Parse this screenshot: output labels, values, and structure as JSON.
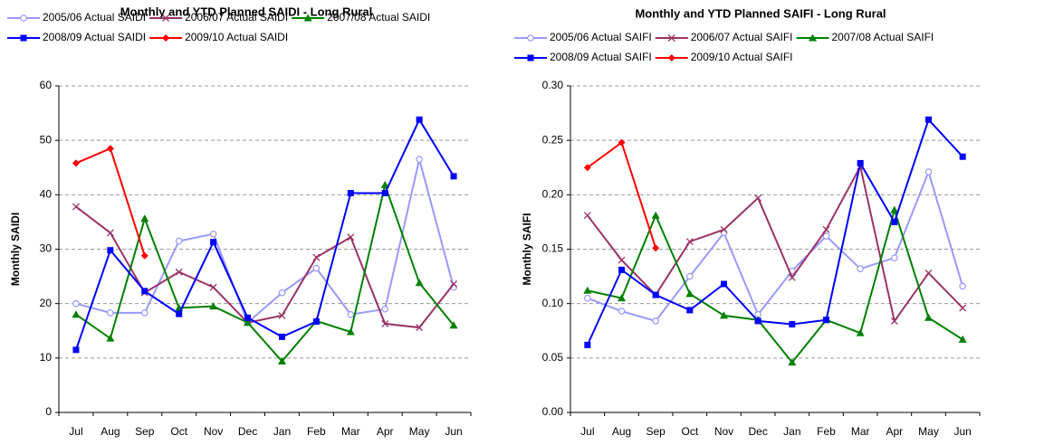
{
  "chart_data": [
    {
      "type": "line",
      "title": "Monthly and YTD Planned SAIDI - Long Rural",
      "y_label": "Monthly SAIDI",
      "categories": [
        "Jul",
        "Aug",
        "Sep",
        "Oct",
        "Nov",
        "Dec",
        "Jan",
        "Feb",
        "Mar",
        "Apr",
        "May",
        "Jun"
      ],
      "ylim": [
        0,
        60
      ],
      "yticks": [
        0,
        10,
        20,
        30,
        40,
        50,
        60
      ],
      "grid": true,
      "series": [
        {
          "name": "2005/06 Actual SAIDI",
          "color": "#9999ff",
          "marker": "circle",
          "values": [
            20,
            18.3,
            18.3,
            31.5,
            32.8,
            16.5,
            22,
            26.5,
            18,
            19,
            46.5,
            23
          ]
        },
        {
          "name": "2006/07 Actual SAIDI",
          "color": "#993366",
          "marker": "x",
          "values": [
            37.8,
            33,
            22,
            25.8,
            23,
            16.5,
            17.8,
            28.5,
            32.2,
            16.3,
            15.6,
            23.6
          ]
        },
        {
          "name": "2007/08 Actual SAIDI",
          "color": "#008000",
          "marker": "triangle",
          "values": [
            18,
            13.6,
            35.6,
            19.2,
            19.5,
            16.5,
            9.4,
            16.8,
            14.8,
            41.8,
            23.8,
            16
          ]
        },
        {
          "name": "2008/09 Actual SAIDI",
          "color": "#0000ff",
          "marker": "square",
          "values": [
            11.5,
            29.8,
            22.3,
            18.1,
            31.3,
            17.4,
            13.9,
            16.7,
            40.3,
            40.3,
            53.8,
            43.4
          ]
        },
        {
          "name": "2009/10 Actual SAIDI",
          "color": "#ff0000",
          "marker": "diamond",
          "values": [
            45.8,
            48.5,
            28.8,
            null,
            null,
            null,
            null,
            null,
            null,
            null,
            null,
            null
          ]
        }
      ]
    },
    {
      "type": "line",
      "title": "Monthly and YTD Planned SAIFI - Long Rural",
      "y_label": "Monthly SAIFI",
      "categories": [
        "Jul",
        "Aug",
        "Sep",
        "Oct",
        "Nov",
        "Dec",
        "Jan",
        "Feb",
        "Mar",
        "Apr",
        "May",
        "Jun"
      ],
      "ylim": [
        0,
        0.3
      ],
      "yticks": [
        {
          "value": 0,
          "label": "0.00"
        },
        0.05,
        {
          "value": 0.1,
          "label": "0.10"
        },
        0.15,
        {
          "value": 0.2,
          "label": "0.20"
        },
        0.25,
        {
          "value": 0.3,
          "label": "0.30"
        }
      ],
      "grid": true,
      "series": [
        {
          "name": "2005/06 Actual SAIFI",
          "color": "#9999ff",
          "marker": "circle",
          "values": [
            0.105,
            0.093,
            0.084,
            0.125,
            0.165,
            0.09,
            0.13,
            0.162,
            0.132,
            0.142,
            0.221,
            0.116
          ]
        },
        {
          "name": "2006/07 Actual SAIFI",
          "color": "#993366",
          "marker": "x",
          "values": [
            0.181,
            0.14,
            0.108,
            0.157,
            0.168,
            0.197,
            0.124,
            0.168,
            0.226,
            0.084,
            0.128,
            0.096
          ]
        },
        {
          "name": "2007/08 Actual SAIFI",
          "color": "#008000",
          "marker": "triangle",
          "values": [
            0.112,
            0.105,
            0.181,
            0.109,
            0.089,
            0.085,
            0.046,
            0.085,
            0.073,
            0.186,
            0.087,
            0.067
          ]
        },
        {
          "name": "2008/09 Actual SAIFI",
          "color": "#0000ff",
          "marker": "square",
          "values": [
            0.062,
            0.131,
            0.108,
            0.094,
            0.118,
            0.084,
            0.081,
            0.085,
            0.229,
            0.175,
            0.269,
            0.235
          ]
        },
        {
          "name": "2009/10 Actual SAIFI",
          "color": "#ff0000",
          "marker": "diamond",
          "values": [
            0.225,
            0.248,
            0.151,
            null,
            null,
            null,
            null,
            null,
            null,
            null,
            null,
            null
          ]
        }
      ]
    }
  ]
}
